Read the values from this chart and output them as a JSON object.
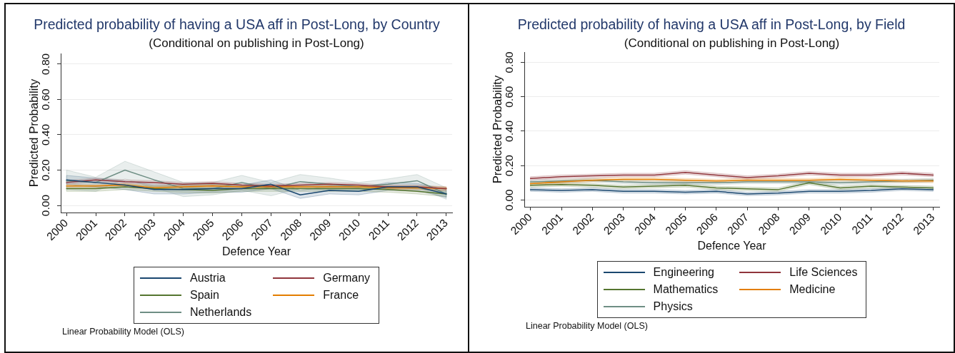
{
  "chart_data": [
    {
      "type": "line",
      "title": "Predicted probability of having a USA aff in Post-Long, by Country",
      "subtitle": "(Conditional on publishing in Post-Long)",
      "xlabel": "Defence Year",
      "ylabel": "Predicted Probability",
      "annotations": [
        "Linear Probability Model (OLS)"
      ],
      "x": [
        2000,
        2001,
        2002,
        2003,
        2004,
        2005,
        2006,
        2007,
        2008,
        2009,
        2010,
        2011,
        2012,
        2013
      ],
      "xlim": [
        1999.8,
        2013.2
      ],
      "xticks": [
        2000,
        2001,
        2002,
        2003,
        2004,
        2005,
        2006,
        2007,
        2008,
        2009,
        2010,
        2011,
        2012,
        2013
      ],
      "ylim": [
        -0.04,
        0.86
      ],
      "yticks": [
        {
          "value": 0,
          "label": "0.00"
        },
        {
          "value": 0.2,
          "label": "0.20"
        },
        {
          "value": 0.4,
          "label": "0.40"
        },
        {
          "value": 0.6,
          "label": "0.60"
        },
        {
          "value": 0.8,
          "label": "0.80"
        }
      ],
      "grid": "y",
      "legend": "bottom",
      "marker": "none",
      "line_style": "solid",
      "series": [
        {
          "name": "Austria",
          "color": "#1a476f",
          "values": [
            0.145,
            0.13,
            0.115,
            0.09,
            0.09,
            0.095,
            0.095,
            0.12,
            0.06,
            0.085,
            0.08,
            0.105,
            0.105,
            0.065
          ],
          "lower": [
            0.12,
            0.105,
            0.09,
            0.065,
            0.065,
            0.075,
            0.075,
            0.095,
            0.04,
            0.065,
            0.06,
            0.085,
            0.085,
            0.045
          ],
          "upper": [
            0.17,
            0.155,
            0.14,
            0.115,
            0.115,
            0.12,
            0.115,
            0.145,
            0.085,
            0.11,
            0.1,
            0.13,
            0.125,
            0.09
          ]
        },
        {
          "name": "Germany",
          "color": "#90353b",
          "values": [
            0.13,
            0.145,
            0.135,
            0.13,
            0.12,
            0.125,
            0.115,
            0.11,
            0.115,
            0.12,
            0.115,
            0.105,
            0.105,
            0.095
          ],
          "lower": [
            0.12,
            0.135,
            0.125,
            0.12,
            0.11,
            0.115,
            0.105,
            0.1,
            0.105,
            0.11,
            0.105,
            0.095,
            0.095,
            0.085
          ],
          "upper": [
            0.14,
            0.155,
            0.145,
            0.14,
            0.13,
            0.135,
            0.125,
            0.12,
            0.125,
            0.13,
            0.125,
            0.115,
            0.115,
            0.105
          ]
        },
        {
          "name": "Spain",
          "color": "#55752f",
          "values": [
            0.095,
            0.095,
            0.105,
            0.095,
            0.09,
            0.085,
            0.095,
            0.095,
            0.095,
            0.095,
            0.095,
            0.09,
            0.08,
            0.065
          ],
          "lower": [
            0.08,
            0.08,
            0.09,
            0.08,
            0.075,
            0.07,
            0.08,
            0.08,
            0.08,
            0.08,
            0.08,
            0.075,
            0.065,
            0.05
          ],
          "upper": [
            0.11,
            0.11,
            0.12,
            0.11,
            0.105,
            0.1,
            0.11,
            0.11,
            0.11,
            0.11,
            0.11,
            0.105,
            0.095,
            0.08
          ]
        },
        {
          "name": "France",
          "color": "#e37e00",
          "values": [
            0.11,
            0.11,
            0.115,
            0.1,
            0.105,
            0.11,
            0.105,
            0.105,
            0.105,
            0.105,
            0.105,
            0.1,
            0.1,
            0.095
          ],
          "lower": [
            0.1,
            0.1,
            0.105,
            0.09,
            0.095,
            0.1,
            0.095,
            0.095,
            0.095,
            0.095,
            0.095,
            0.09,
            0.09,
            0.085
          ],
          "upper": [
            0.12,
            0.12,
            0.125,
            0.11,
            0.115,
            0.12,
            0.115,
            0.115,
            0.115,
            0.115,
            0.115,
            0.11,
            0.11,
            0.105
          ]
        },
        {
          "name": "Netherlands",
          "color": "#6e8e84",
          "values": [
            0.14,
            0.13,
            0.2,
            0.145,
            0.095,
            0.095,
            0.13,
            0.095,
            0.135,
            0.12,
            0.105,
            0.12,
            0.14,
            0.065
          ],
          "lower": [
            0.09,
            0.08,
            0.15,
            0.1,
            0.05,
            0.06,
            0.085,
            0.055,
            0.095,
            0.085,
            0.085,
            0.095,
            0.105,
            0.035
          ],
          "upper": [
            0.2,
            0.16,
            0.25,
            0.19,
            0.13,
            0.13,
            0.17,
            0.13,
            0.175,
            0.155,
            0.13,
            0.15,
            0.175,
            0.1
          ]
        }
      ]
    },
    {
      "type": "line",
      "title": "Predicted probability of having a USA aff in Post-Long, by Field",
      "subtitle": "(Conditional on publishing in Post-Long)",
      "xlabel": "Defence Year",
      "ylabel": "Predicted Probability",
      "annotations": [
        "Linear Probability Model (OLS)"
      ],
      "x": [
        2000,
        2001,
        2002,
        2003,
        2004,
        2005,
        2006,
        2007,
        2008,
        2009,
        2010,
        2011,
        2012,
        2013
      ],
      "xlim": [
        1999.8,
        2013.2
      ],
      "xticks": [
        2000,
        2001,
        2002,
        2003,
        2004,
        2005,
        2006,
        2007,
        2008,
        2009,
        2010,
        2011,
        2012,
        2013
      ],
      "ylim": [
        -0.04,
        0.86
      ],
      "yticks": [
        {
          "value": 0,
          "label": "0.00"
        },
        {
          "value": 0.2,
          "label": "0.20"
        },
        {
          "value": 0.4,
          "label": "0.40"
        },
        {
          "value": 0.6,
          "label": "0.60"
        },
        {
          "value": 0.8,
          "label": "0.80"
        }
      ],
      "grid": "y",
      "legend": "bottom",
      "marker": "none",
      "line_style": "solid",
      "series": [
        {
          "name": "Engineering",
          "color": "#1a476f",
          "values": [
            0.06,
            0.055,
            0.06,
            0.05,
            0.05,
            0.045,
            0.05,
            0.035,
            0.04,
            0.05,
            0.05,
            0.055,
            0.065,
            0.06
          ],
          "lower": [
            0.05,
            0.045,
            0.05,
            0.04,
            0.04,
            0.035,
            0.04,
            0.025,
            0.03,
            0.04,
            0.04,
            0.045,
            0.055,
            0.05
          ],
          "upper": [
            0.07,
            0.065,
            0.07,
            0.06,
            0.06,
            0.055,
            0.06,
            0.045,
            0.05,
            0.06,
            0.06,
            0.065,
            0.075,
            0.07
          ]
        },
        {
          "name": "Life Sciences",
          "color": "#90353b",
          "values": [
            0.125,
            0.135,
            0.14,
            0.145,
            0.145,
            0.16,
            0.145,
            0.13,
            0.14,
            0.155,
            0.145,
            0.145,
            0.155,
            0.145
          ],
          "lower": [
            0.115,
            0.125,
            0.13,
            0.135,
            0.135,
            0.15,
            0.135,
            0.12,
            0.13,
            0.145,
            0.135,
            0.135,
            0.145,
            0.135
          ],
          "upper": [
            0.135,
            0.145,
            0.15,
            0.155,
            0.155,
            0.17,
            0.155,
            0.14,
            0.15,
            0.165,
            0.155,
            0.155,
            0.165,
            0.155
          ]
        },
        {
          "name": "Mathematics",
          "color": "#55752f",
          "values": [
            0.085,
            0.09,
            0.085,
            0.075,
            0.08,
            0.085,
            0.07,
            0.065,
            0.06,
            0.1,
            0.07,
            0.08,
            0.075,
            0.07
          ],
          "lower": [
            0.075,
            0.08,
            0.075,
            0.065,
            0.07,
            0.075,
            0.06,
            0.055,
            0.05,
            0.09,
            0.06,
            0.07,
            0.065,
            0.06
          ],
          "upper": [
            0.095,
            0.1,
            0.095,
            0.085,
            0.09,
            0.095,
            0.08,
            0.075,
            0.07,
            0.11,
            0.08,
            0.09,
            0.085,
            0.08
          ]
        },
        {
          "name": "Medicine",
          "color": "#e37e00",
          "values": [
            0.095,
            0.105,
            0.115,
            0.12,
            0.12,
            0.115,
            0.11,
            0.115,
            0.115,
            0.115,
            0.12,
            0.115,
            0.11,
            0.11
          ],
          "lower": [
            0.085,
            0.095,
            0.105,
            0.11,
            0.11,
            0.105,
            0.1,
            0.105,
            0.105,
            0.105,
            0.11,
            0.105,
            0.1,
            0.1
          ],
          "upper": [
            0.105,
            0.115,
            0.125,
            0.13,
            0.13,
            0.125,
            0.12,
            0.125,
            0.125,
            0.125,
            0.13,
            0.125,
            0.12,
            0.12
          ]
        },
        {
          "name": "Physics",
          "color": "#6e8e84",
          "values": [
            0.105,
            0.11,
            0.115,
            0.105,
            0.1,
            0.1,
            0.1,
            0.105,
            0.105,
            0.105,
            0.1,
            0.105,
            0.11,
            0.115
          ],
          "lower": [
            0.095,
            0.1,
            0.105,
            0.095,
            0.09,
            0.09,
            0.09,
            0.095,
            0.095,
            0.095,
            0.09,
            0.095,
            0.1,
            0.105
          ],
          "upper": [
            0.115,
            0.12,
            0.125,
            0.115,
            0.11,
            0.11,
            0.11,
            0.115,
            0.115,
            0.115,
            0.11,
            0.115,
            0.12,
            0.125
          ]
        }
      ]
    }
  ]
}
